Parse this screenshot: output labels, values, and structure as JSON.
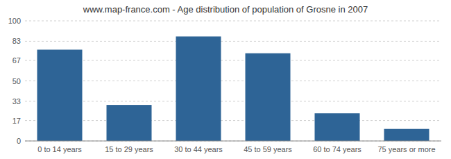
{
  "chart_data": {
    "type": "bar",
    "title": "www.map-france.com - Age distribution of population of Grosne in 2007",
    "categories": [
      "0 to 14 years",
      "15 to 29 years",
      "30 to 44 years",
      "45 to 59 years",
      "60 to 74 years",
      "75 years or more"
    ],
    "values": [
      76,
      30,
      87,
      73,
      23,
      10
    ],
    "color": "#2e6496",
    "ylim": [
      0,
      100
    ],
    "yticks": [
      0,
      17,
      33,
      50,
      67,
      83,
      100
    ],
    "grid": true
  }
}
